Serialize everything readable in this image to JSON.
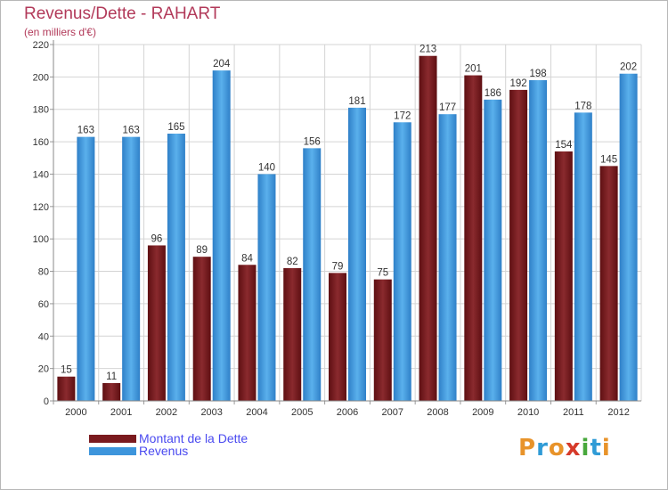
{
  "colors": {
    "title": "#b23a5a",
    "dette": "#7a1a1e",
    "revenus": "#3d95dc",
    "legend_text": "#4a4af0",
    "logo": [
      "#e8932a",
      "#2f9bd6",
      "#e8932a",
      "#d63a2a",
      "#48a83c",
      "#2f9bd6",
      "#e8932a"
    ]
  },
  "header": {
    "title": "Revenus/Dette - RAHART",
    "subtitle": "(en milliers d'€)"
  },
  "legend": {
    "items": [
      {
        "label": "Montant de la Dette",
        "color": "#7a1a1e"
      },
      {
        "label": "Revenus",
        "color": "#3d95dc"
      }
    ]
  },
  "logo": {
    "text": "Proxiti"
  },
  "chart_data": {
    "type": "bar",
    "title": "Revenus/Dette - RAHART",
    "subtitle": "(en milliers d'€)",
    "categories": [
      "2000",
      "2001",
      "2002",
      "2003",
      "2004",
      "2005",
      "2006",
      "2007",
      "2008",
      "2009",
      "2010",
      "2011",
      "2012"
    ],
    "series": [
      {
        "name": "Montant de la Dette",
        "values": [
          15,
          11,
          96,
          89,
          84,
          82,
          79,
          75,
          213,
          201,
          192,
          154,
          145
        ]
      },
      {
        "name": "Revenus",
        "values": [
          163,
          163,
          165,
          204,
          140,
          156,
          181,
          172,
          177,
          186,
          198,
          178,
          202
        ]
      }
    ],
    "ylim": [
      0,
      220
    ],
    "yticks": [
      0,
      20,
      40,
      60,
      80,
      100,
      120,
      140,
      160,
      180,
      200,
      220
    ],
    "grid": true,
    "legend_position": "bottom-left"
  }
}
